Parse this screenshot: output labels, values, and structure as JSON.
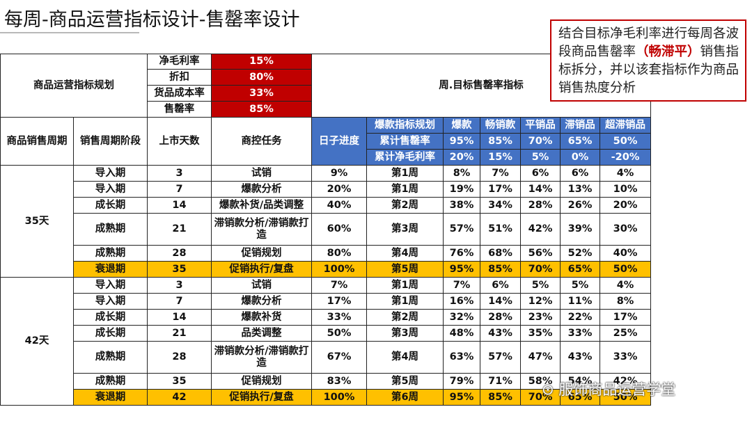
{
  "title": "每周-商品运营指标设计-售罄率设计",
  "note": {
    "part1": "结合目标净毛利率进行每周各波段商品售罄率",
    "highlight": "（畅滞平）",
    "part2": "销售指标拆分，并以该套指标作为商品销售热度分析"
  },
  "plan": {
    "label": "商品运营指标规划",
    "right_label": "周.目标售罄率指标",
    "params": [
      {
        "name": "净毛利率",
        "value": "15%"
      },
      {
        "name": "折扣",
        "value": "80%"
      },
      {
        "name": "货品成本率",
        "value": "33%"
      },
      {
        "name": "售罄率",
        "value": "85%"
      }
    ]
  },
  "headers": {
    "cycle": "商品销售周期",
    "stage": "销售周期阶段",
    "days": "上市天数",
    "task": "商控任务",
    "progress": "日子进度",
    "plan_row_label": "爆款指标规划",
    "categories": [
      "爆款",
      "畅销款",
      "平销品",
      "滞销品",
      "超滞销品"
    ],
    "sellthrough_label": "累计售罄率",
    "sellthrough": [
      "95%",
      "85%",
      "70%",
      "65%",
      "50%"
    ],
    "margin_label": "累计净毛利率",
    "margin": [
      "20%",
      "15%",
      "5%",
      "0%",
      "-20%"
    ]
  },
  "groups": [
    {
      "cycle": "35天",
      "rows": [
        {
          "stage": "导入期",
          "days": "3",
          "task": "试销",
          "progress": "9%",
          "week": "第1周",
          "v": [
            "8%",
            "7%",
            "6%",
            "6%",
            "4%"
          ]
        },
        {
          "stage": "导入期",
          "days": "7",
          "task": "爆款分析",
          "progress": "20%",
          "week": "第1周",
          "v": [
            "19%",
            "17%",
            "14%",
            "13%",
            "10%"
          ]
        },
        {
          "stage": "成长期",
          "days": "14",
          "task": "爆款补货/品类调整",
          "progress": "40%",
          "week": "第2周",
          "v": [
            "38%",
            "34%",
            "28%",
            "26%",
            "20%"
          ]
        },
        {
          "stage": "成熟期",
          "days": "21",
          "task": "滞销款分析/滞销款打造",
          "progress": "60%",
          "week": "第3周",
          "v": [
            "57%",
            "51%",
            "42%",
            "39%",
            "30%"
          ]
        },
        {
          "stage": "成熟期",
          "days": "28",
          "task": "促销规划",
          "progress": "80%",
          "week": "第4周",
          "v": [
            "76%",
            "68%",
            "56%",
            "52%",
            "40%"
          ]
        },
        {
          "stage": "衰退期",
          "days": "35",
          "task": "促销执行/复盘",
          "progress": "100%",
          "week": "第5周",
          "v": [
            "95%",
            "85%",
            "70%",
            "65%",
            "50%"
          ]
        }
      ]
    },
    {
      "cycle": "42天",
      "rows": [
        {
          "stage": "导入期",
          "days": "3",
          "task": "试销",
          "progress": "7%",
          "week": "第1周",
          "v": [
            "7%",
            "6%",
            "5%",
            "5%",
            "4%"
          ]
        },
        {
          "stage": "导入期",
          "days": "7",
          "task": "爆款分析",
          "progress": "17%",
          "week": "第1周",
          "v": [
            "16%",
            "14%",
            "12%",
            "11%",
            "8%"
          ]
        },
        {
          "stage": "成长期",
          "days": "14",
          "task": "爆款补货",
          "progress": "33%",
          "week": "第2周",
          "v": [
            "32%",
            "28%",
            "23%",
            "22%",
            "17%"
          ]
        },
        {
          "stage": "成长期",
          "days": "21",
          "task": "品类调整",
          "progress": "50%",
          "week": "第3周",
          "v": [
            "48%",
            "43%",
            "35%",
            "33%",
            "25%"
          ]
        },
        {
          "stage": "成熟期",
          "days": "28",
          "task": "滞销款分析/滞销款打造",
          "progress": "67%",
          "week": "第4周",
          "v": [
            "63%",
            "57%",
            "47%",
            "43%",
            "33%"
          ]
        },
        {
          "stage": "成熟期",
          "days": "35",
          "task": "促销规划",
          "progress": "83%",
          "week": "第5周",
          "v": [
            "79%",
            "71%",
            "58%",
            "54%",
            "42%"
          ]
        },
        {
          "stage": "衰退期",
          "days": "42",
          "task": "促销执行/复盘",
          "progress": "100%",
          "week": "第6周",
          "v": [
            "95%",
            "85%",
            "70%",
            "65%",
            "50%"
          ]
        }
      ]
    }
  ],
  "watermark": "服饰商品运营学堂",
  "colors": {
    "red": "#c00000",
    "blue": "#4472c4",
    "gold": "#ffc000"
  }
}
